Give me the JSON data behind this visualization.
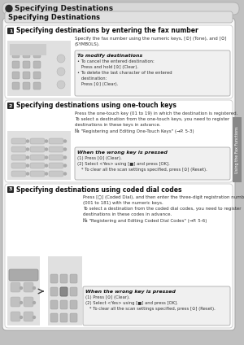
{
  "page_bg": "#c8c8c8",
  "outer_bg": "#c0c0c0",
  "header_bg": "#d0d0d0",
  "header_text": "Specifying Destinations",
  "subheader_text": "Specifying Destinations",
  "section1_title": "Specifying destinations by entering the fax number",
  "section2_title": "Specifying destinations using one-touch keys",
  "section3_title": "Specifying destinations using coded dial codes",
  "section1_body": "Specify the fax number using the numeric keys, [⊙] (Tone), and [⊙]\n(SYMBOLS).",
  "section2_body": "Press the one-touch key (01 to 19) in which the destination is registered.\nTo select a destination from the one-touch keys, you need to register\ndestinations in these keys in advance.\n№ \"Registering and Editing One-Touch Keys\" (→P. 5-3)",
  "section3_body": "Press [○] (Coded Dial), and then enter the three-digit registration number\n(001 to 181) with the numeric keys.\nTo select a destination from the coded dial codes, you need to register\ndestinations in these codes in advance.\n№ \"Registering and Editing Coded Dial Codes\" (→P. 5-6)",
  "box1_title": "To modify destinations",
  "box1_body": "• To cancel the entered destination:\n   Press and hold [⊙] (Clear).\n• To delete the last character of the entered\n   destination:\n   Press [⊙] (Clear).",
  "box2_title": "When the wrong key is pressed",
  "box2_body": "(1) Press [⊙] (Clear).\n(2) Select <Yes> using [■] and press [OK].\n   * To clear all the scan settings specified, press [⊙] (Reset).",
  "box3_title": "When the wrong key is pressed",
  "box3_body": "(1) Press [⊙] (Clear).\n(2) Select <Yes> using [■] and press [OK].\n   * To clear all the scan settings specified, press [⊙] (Reset).",
  "sidebar_text": "Using the Fax Functions"
}
